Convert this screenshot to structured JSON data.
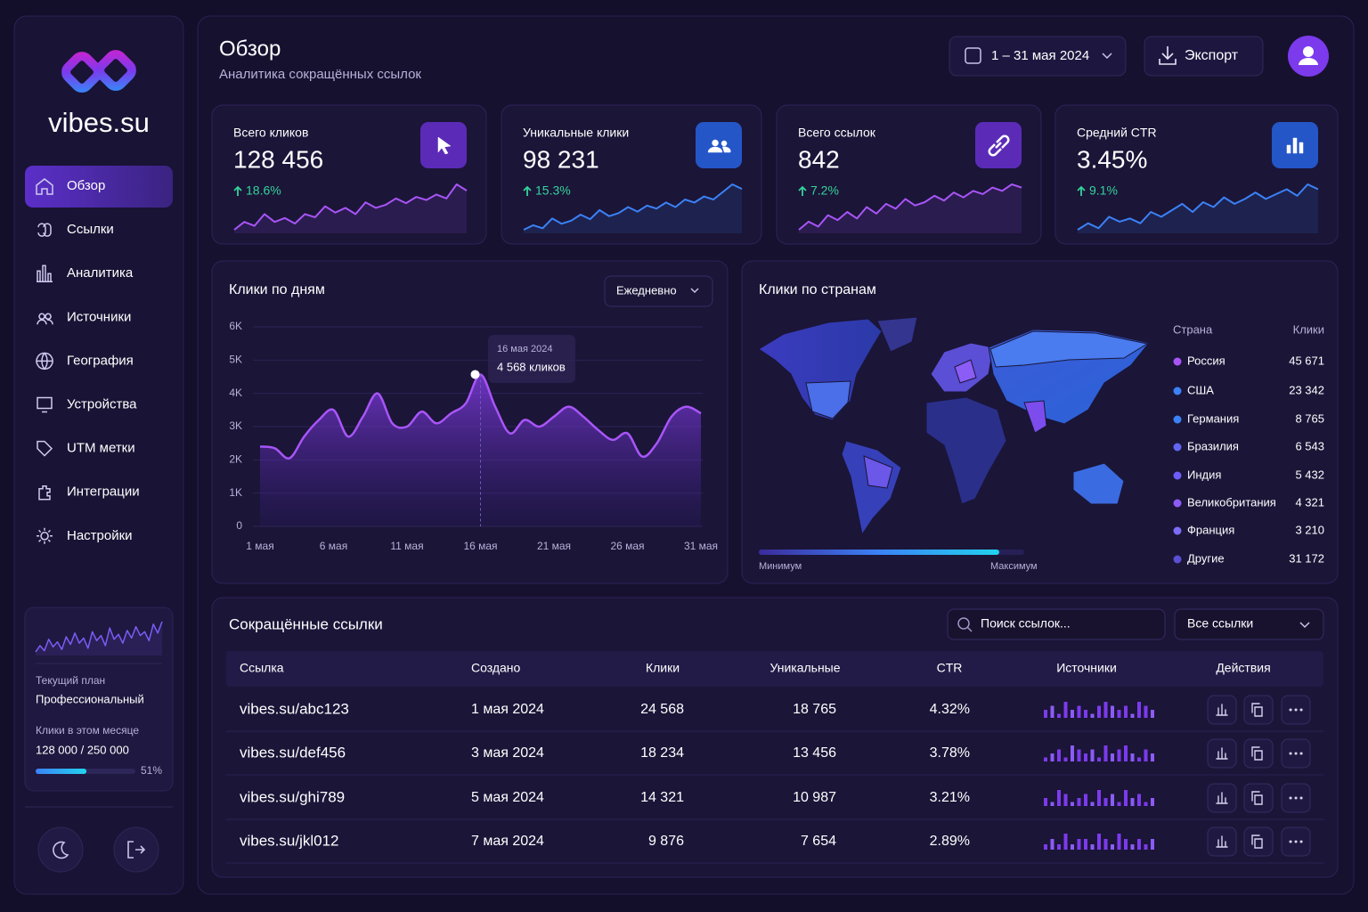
{
  "brand": "vibes.su",
  "nav": [
    "Обзор",
    "Ссылки",
    "Аналитика",
    "Источники",
    "География",
    "Устройства",
    "UTM метки",
    "Интеграции",
    "Настройки"
  ],
  "plan": {
    "label": "Текущий план",
    "name": "Профессиональный",
    "usage_label": "Клики в этом месяце",
    "usage": "128 000 / 250 000",
    "percent": 51,
    "percent_label": "51%",
    "trend": [
      3,
      4,
      3.2,
      5,
      3.8,
      4.6,
      3.4,
      5.4,
      4.2,
      6,
      4.4,
      5.2,
      3.6,
      6.2,
      4.8,
      5.6,
      4,
      6.8,
      5,
      5.8,
      4.4,
      6.4,
      5.2,
      7,
      5.6,
      6.2,
      4.8,
      7.4,
      6,
      7.8
    ]
  },
  "header": {
    "title": "Обзор",
    "subtitle": "Аналитика сокращённых ссылок",
    "date_range": "1 – 31 мая 2024",
    "export": "Экспорт"
  },
  "kpis": [
    {
      "label": "Всего кликов",
      "value": "128 456",
      "change": "18.6%",
      "color": "#a855f7",
      "trend": [
        3,
        4,
        3.5,
        5,
        4,
        4.5,
        3.8,
        5,
        4.6,
        6,
        5.2,
        5.8,
        5,
        6.5,
        5.8,
        6.2,
        7,
        6.4,
        7.2,
        6.8,
        7.5,
        7,
        8.8,
        8
      ]
    },
    {
      "label": "Уникальные клики",
      "value": "98 231",
      "change": "15.3%",
      "color": "#3b82f6",
      "trend": [
        3,
        3.6,
        3.2,
        4.5,
        3.8,
        4.2,
        5,
        4.4,
        5.6,
        4.8,
        5.2,
        6,
        5.4,
        6.2,
        5.8,
        6.6,
        6,
        7,
        6.6,
        7.4,
        7,
        8,
        9,
        8.4
      ]
    },
    {
      "label": "Всего ссылок",
      "value": "842",
      "change": "7.2%",
      "color": "#a855f7",
      "trend": [
        3,
        4,
        3.4,
        4.8,
        4.2,
        5.2,
        4.4,
        5.8,
        5,
        6.2,
        5.6,
        6.8,
        6,
        6.4,
        7.2,
        6.6,
        7.6,
        7,
        7.8,
        7.4,
        8.2,
        7.8,
        8.6,
        8.2
      ]
    },
    {
      "label": "Средний CTR",
      "value": "3.45%",
      "change": "9.1%",
      "color": "#3b82f6",
      "trend": [
        3,
        3.8,
        3.2,
        4.6,
        4,
        4.4,
        3.8,
        5.2,
        4.6,
        5.4,
        6.2,
        5.2,
        6.4,
        5.8,
        7,
        6.2,
        6.8,
        7.6,
        6.8,
        7.4,
        8,
        7.2,
        8.6,
        8
      ]
    }
  ],
  "daily_chart": {
    "type": "line",
    "title": "Клики по дням",
    "period": "Ежедневно",
    "color": "#a855f7",
    "categories": [
      "1 мая",
      null,
      null,
      null,
      null,
      "6 мая",
      null,
      null,
      null,
      null,
      "11 мая",
      null,
      null,
      null,
      null,
      "16 мая",
      null,
      null,
      null,
      null,
      "21 мая",
      null,
      null,
      null,
      null,
      "26 мая",
      null,
      null,
      null,
      null,
      "31 мая"
    ],
    "values": [
      2400,
      2350,
      2050,
      2700,
      3200,
      3500,
      2700,
      3300,
      4000,
      3100,
      3000,
      3450,
      3100,
      3400,
      3700,
      4568,
      3600,
      2800,
      3200,
      3000,
      3300,
      3600,
      3300,
      2900,
      2600,
      2800,
      2100,
      2500,
      3300,
      3600,
      3400
    ],
    "ylim": [
      0,
      6000
    ],
    "yticks": [
      0,
      {
        "value": 1000,
        "label": "1K"
      },
      {
        "value": 2000,
        "label": "2K"
      },
      {
        "value": 3000,
        "label": "3K"
      },
      {
        "value": 4000,
        "label": "4K"
      },
      {
        "value": 5000,
        "label": "5K"
      },
      {
        "value": 6000,
        "label": "6K"
      }
    ],
    "grid": true,
    "tooltip": {
      "date": "16 мая 2024",
      "value": "4 568 кликов"
    }
  },
  "countries": {
    "title": "Клики по странам",
    "legend_min": "Минимум",
    "legend_max": "Максимум",
    "columns": [
      "Страна",
      "Клики"
    ],
    "rows": [
      {
        "name": "Россия",
        "clicks": "45 671",
        "color": "#a855f7"
      },
      {
        "name": "США",
        "clicks": "23 342",
        "color": "#3b82f6"
      },
      {
        "name": "Германия",
        "clicks": "8 765",
        "color": "#3b82f6"
      },
      {
        "name": "Бразилия",
        "clicks": "6 543",
        "color": "#6366f1"
      },
      {
        "name": "Индия",
        "clicks": "5 432",
        "color": "#6d5dfc"
      },
      {
        "name": "Великобритания",
        "clicks": "4 321",
        "color": "#8b5cf6"
      },
      {
        "name": "Франция",
        "clicks": "3 210",
        "color": "#7c6cf6"
      },
      {
        "name": "Другие",
        "clicks": "31 172",
        "color": "#5b4fd6"
      }
    ]
  },
  "links": {
    "title": "Сокращённые ссылки",
    "search_placeholder": "Поиск ссылок...",
    "filter": "Все ссылки",
    "columns": [
      "Ссылка",
      "Создано",
      "Клики",
      "Уникальные",
      "CTR",
      "Источники",
      "Действия"
    ],
    "rows": [
      {
        "url": "vibes.su/abc123",
        "created": "1 мая 2024",
        "clicks": "24 568",
        "unique": "18 765",
        "ctr": "4.32%",
        "sources": [
          2,
          3,
          1,
          4,
          2,
          3,
          2,
          1,
          3,
          4,
          3,
          2,
          3,
          1,
          4,
          3,
          2
        ]
      },
      {
        "url": "vibes.su/def456",
        "created": "3 мая 2024",
        "clicks": "18 234",
        "unique": "13 456",
        "ctr": "3.78%",
        "sources": [
          1,
          2,
          3,
          1,
          4,
          3,
          2,
          3,
          1,
          4,
          2,
          3,
          4,
          2,
          1,
          3,
          2
        ]
      },
      {
        "url": "vibes.su/ghi789",
        "created": "5 мая 2024",
        "clicks": "14 321",
        "unique": "10 987",
        "ctr": "3.21%",
        "sources": [
          2,
          1,
          4,
          3,
          1,
          2,
          3,
          1,
          4,
          2,
          3,
          1,
          4,
          2,
          3,
          1,
          2
        ]
      },
      {
        "url": "vibes.su/jkl012",
        "created": "7 мая 2024",
        "clicks": "9 876",
        "unique": "7 654",
        "ctr": "2.89%",
        "sources": [
          1,
          2,
          1,
          3,
          1,
          2,
          2,
          1,
          3,
          2,
          1,
          3,
          2,
          1,
          2,
          1,
          2
        ]
      }
    ]
  }
}
